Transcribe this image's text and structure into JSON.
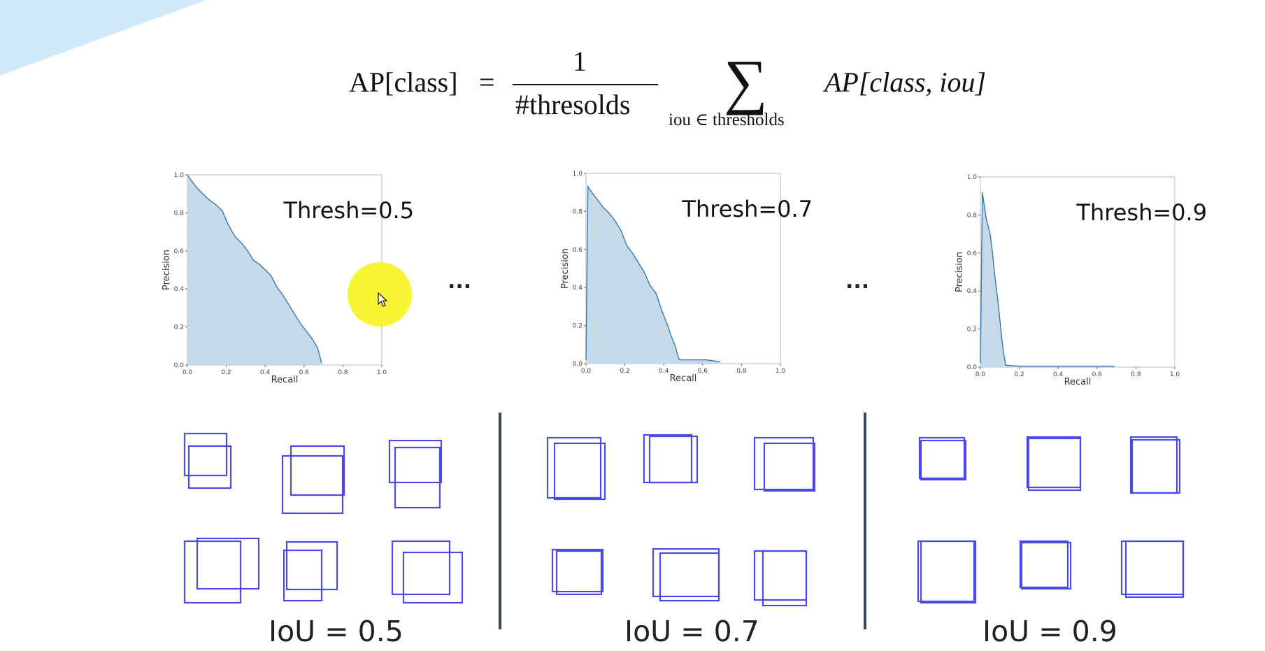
{
  "formula": {
    "lhs": "AP[class]",
    "equals": "=",
    "numerator": "1",
    "denominator": "#thresolds",
    "sigma": "∑",
    "subscript": "iou ∈ thresholds",
    "rhs": "AP[class, iou]"
  },
  "colors": {
    "area_fill": "#c6d9e9",
    "area_line": "#3a78ad",
    "box_stroke": "#4a4ae6",
    "divider": "#33465a",
    "corner": "#cfe9fb",
    "cursor_highlight": "#f6f31e"
  },
  "ellipsis": [
    "...",
    "..."
  ],
  "chart_data": [
    {
      "type": "area",
      "annotation": "Thresh=0.5",
      "xlabel": "Recall",
      "ylabel": "Precision",
      "xlim": [
        0,
        1
      ],
      "ylim": [
        0,
        1
      ],
      "xticks": [
        "0.0",
        "0.2",
        "0.4",
        "0.6",
        "0.8",
        "1.0"
      ],
      "yticks": [
        "0.0",
        "0.2",
        "0.4",
        "0.6",
        "0.8",
        "1.0"
      ],
      "grid": false,
      "x": [
        0,
        0.02,
        0.05,
        0.08,
        0.11,
        0.15,
        0.18,
        0.2,
        0.23,
        0.25,
        0.28,
        0.31,
        0.34,
        0.37,
        0.4,
        0.43,
        0.46,
        0.49,
        0.52,
        0.55,
        0.58,
        0.61,
        0.64,
        0.67,
        0.68,
        0.69
      ],
      "y": [
        1.0,
        0.97,
        0.93,
        0.9,
        0.87,
        0.84,
        0.81,
        0.76,
        0.7,
        0.67,
        0.64,
        0.6,
        0.55,
        0.53,
        0.5,
        0.47,
        0.41,
        0.37,
        0.32,
        0.27,
        0.22,
        0.18,
        0.14,
        0.09,
        0.05,
        0.01
      ]
    },
    {
      "type": "area",
      "annotation": "Thresh=0.7",
      "xlabel": "Recall",
      "ylabel": "Precision",
      "xlim": [
        0,
        1
      ],
      "ylim": [
        0,
        1
      ],
      "xticks": [
        "0.0",
        "0.2",
        "0.4",
        "0.6",
        "0.8",
        "1.0"
      ],
      "yticks": [
        "0.0",
        "0.2",
        "0.4",
        "0.6",
        "0.8",
        "1.0"
      ],
      "grid": false,
      "x": [
        0,
        0.01,
        0.03,
        0.06,
        0.09,
        0.12,
        0.15,
        0.18,
        0.21,
        0.24,
        0.27,
        0.3,
        0.33,
        0.36,
        0.39,
        0.42,
        0.44,
        0.46,
        0.47,
        0.48,
        0.55,
        0.62,
        0.69
      ],
      "y": [
        0.02,
        0.93,
        0.9,
        0.86,
        0.82,
        0.79,
        0.75,
        0.7,
        0.62,
        0.58,
        0.53,
        0.48,
        0.41,
        0.37,
        0.28,
        0.2,
        0.14,
        0.09,
        0.05,
        0.02,
        0.02,
        0.02,
        0.01
      ]
    },
    {
      "type": "area",
      "annotation": "Thresh=0.9",
      "xlabel": "Recall",
      "ylabel": "Precision",
      "xlim": [
        0,
        1
      ],
      "ylim": [
        0,
        1
      ],
      "xticks": [
        "0.0",
        "0.2",
        "0.4",
        "0.6",
        "0.8",
        "1.0"
      ],
      "yticks": [
        "0.0",
        "0.2",
        "0.4",
        "0.6",
        "0.8",
        "1.0"
      ],
      "grid": false,
      "x": [
        0,
        0.01,
        0.02,
        0.03,
        0.05,
        0.06,
        0.07,
        0.08,
        0.09,
        0.1,
        0.11,
        0.12,
        0.13,
        0.2,
        0.4,
        0.6,
        0.69
      ],
      "y": [
        0.02,
        0.92,
        0.85,
        0.78,
        0.7,
        0.62,
        0.52,
        0.43,
        0.35,
        0.25,
        0.15,
        0.07,
        0.01,
        0.005,
        0.005,
        0.005,
        0.004
      ]
    }
  ],
  "iou_groups": [
    {
      "label": "IoU = 0.5",
      "pairs": [
        [
          [
            0,
            0,
            60,
            60
          ],
          [
            6,
            18,
            60,
            60
          ]
        ],
        [
          [
            12,
            0,
            76,
            70
          ],
          [
            0,
            14,
            86,
            82
          ]
        ],
        [
          [
            0,
            0,
            74,
            60
          ],
          [
            8,
            10,
            64,
            86
          ]
        ],
        [
          [
            18,
            0,
            88,
            72
          ],
          [
            0,
            4,
            80,
            88
          ]
        ],
        [
          [
            4,
            0,
            72,
            68
          ],
          [
            0,
            12,
            54,
            72
          ]
        ],
        [
          [
            0,
            0,
            82,
            76
          ],
          [
            16,
            16,
            84,
            72
          ]
        ]
      ]
    },
    {
      "label": "IoU = 0.7",
      "pairs": [
        [
          [
            0,
            0,
            76,
            86
          ],
          [
            10,
            8,
            72,
            80
          ]
        ],
        [
          [
            0,
            0,
            68,
            68
          ],
          [
            8,
            2,
            68,
            66
          ]
        ],
        [
          [
            0,
            0,
            84,
            74
          ],
          [
            14,
            8,
            72,
            68
          ]
        ],
        [
          [
            0,
            0,
            72,
            60
          ],
          [
            6,
            2,
            64,
            62
          ]
        ],
        [
          [
            0,
            0,
            94,
            68
          ],
          [
            10,
            6,
            84,
            68
          ]
        ],
        [
          [
            0,
            0,
            74,
            70
          ],
          [
            12,
            0,
            62,
            78
          ]
        ]
      ]
    },
    {
      "label": "IoU = 0.9",
      "pairs": [
        [
          [
            0,
            0,
            64,
            58
          ],
          [
            2,
            4,
            64,
            56
          ]
        ],
        [
          [
            0,
            0,
            76,
            72
          ],
          [
            2,
            2,
            74,
            74
          ]
        ],
        [
          [
            0,
            0,
            66,
            80
          ],
          [
            2,
            4,
            68,
            76
          ]
        ],
        [
          [
            0,
            0,
            80,
            86
          ],
          [
            4,
            0,
            78,
            88
          ]
        ],
        [
          [
            0,
            0,
            68,
            66
          ],
          [
            2,
            2,
            70,
            66
          ]
        ],
        [
          [
            0,
            0,
            88,
            76
          ],
          [
            6,
            0,
            82,
            80
          ]
        ]
      ]
    }
  ]
}
